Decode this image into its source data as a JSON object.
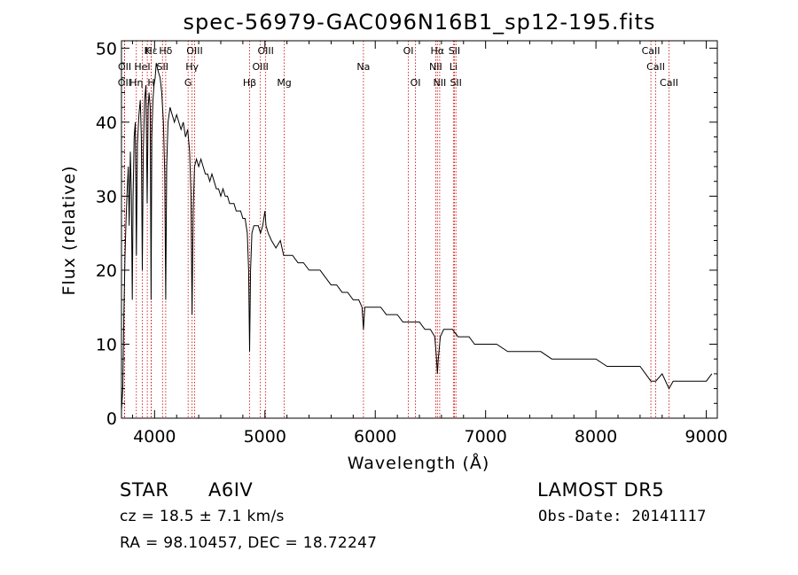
{
  "chart_data": {
    "type": "line",
    "title": "spec-56979-GAC096N16B1_sp12-195.fits",
    "xlabel": "Wavelength (Å)",
    "ylabel": "Flux (relative)",
    "xlim": [
      3700,
      9100
    ],
    "ylim": [
      0,
      51
    ],
    "xticks": [
      4000,
      5000,
      6000,
      7000,
      8000,
      9000
    ],
    "yticks": [
      0,
      10,
      20,
      30,
      40,
      50
    ],
    "xtick_labels": [
      "4000",
      "5000",
      "6000",
      "7000",
      "8000",
      "9000"
    ],
    "ytick_labels": [
      "0",
      "10",
      "20",
      "30",
      "40",
      "50"
    ],
    "grid": false,
    "line_color": "#000000",
    "marker_color": "#cc0000",
    "series": [
      {
        "points": [
          [
            3700,
            1
          ],
          [
            3712,
            4
          ],
          [
            3722,
            14
          ],
          [
            3732,
            22
          ],
          [
            3742,
            27
          ],
          [
            3752,
            31
          ],
          [
            3762,
            34
          ],
          [
            3770,
            26
          ],
          [
            3780,
            36
          ],
          [
            3790,
            30
          ],
          [
            3798,
            16
          ],
          [
            3805,
            30
          ],
          [
            3815,
            38
          ],
          [
            3825,
            40
          ],
          [
            3835,
            22
          ],
          [
            3845,
            37
          ],
          [
            3858,
            41
          ],
          [
            3870,
            43
          ],
          [
            3880,
            38
          ],
          [
            3889,
            20
          ],
          [
            3898,
            36
          ],
          [
            3910,
            43
          ],
          [
            3922,
            45
          ],
          [
            3933,
            29
          ],
          [
            3942,
            42
          ],
          [
            3950,
            44
          ],
          [
            3960,
            42
          ],
          [
            3968,
            16
          ],
          [
            3975,
            38
          ],
          [
            3985,
            43
          ],
          [
            3995,
            45
          ],
          [
            4005,
            46
          ],
          [
            4015,
            48
          ],
          [
            4030,
            47
          ],
          [
            4050,
            46
          ],
          [
            4065,
            44
          ],
          [
            4080,
            40
          ],
          [
            4092,
            33
          ],
          [
            4101,
            16
          ],
          [
            4110,
            34
          ],
          [
            4122,
            40
          ],
          [
            4140,
            42
          ],
          [
            4160,
            41
          ],
          [
            4180,
            40
          ],
          [
            4200,
            41
          ],
          [
            4220,
            40
          ],
          [
            4240,
            39
          ],
          [
            4260,
            40
          ],
          [
            4280,
            38
          ],
          [
            4300,
            39
          ],
          [
            4318,
            36
          ],
          [
            4330,
            30
          ],
          [
            4340,
            14
          ],
          [
            4350,
            28
          ],
          [
            4362,
            34
          ],
          [
            4380,
            35
          ],
          [
            4400,
            34
          ],
          [
            4420,
            35
          ],
          [
            4440,
            34
          ],
          [
            4460,
            33
          ],
          [
            4480,
            33
          ],
          [
            4500,
            32
          ],
          [
            4520,
            33
          ],
          [
            4540,
            32
          ],
          [
            4560,
            31
          ],
          [
            4580,
            31
          ],
          [
            4600,
            30
          ],
          [
            4620,
            31
          ],
          [
            4640,
            30
          ],
          [
            4660,
            30
          ],
          [
            4680,
            29
          ],
          [
            4700,
            29
          ],
          [
            4720,
            29
          ],
          [
            4740,
            28
          ],
          [
            4760,
            28
          ],
          [
            4780,
            28
          ],
          [
            4800,
            27
          ],
          [
            4820,
            27
          ],
          [
            4840,
            25
          ],
          [
            4852,
            20
          ],
          [
            4861,
            9
          ],
          [
            4870,
            20
          ],
          [
            4882,
            25
          ],
          [
            4900,
            26
          ],
          [
            4920,
            26
          ],
          [
            4940,
            26
          ],
          [
            4960,
            25
          ],
          [
            4980,
            26
          ],
          [
            5000,
            28
          ],
          [
            5010,
            26
          ],
          [
            5030,
            25
          ],
          [
            5060,
            24
          ],
          [
            5100,
            23
          ],
          [
            5140,
            24
          ],
          [
            5170,
            22
          ],
          [
            5200,
            22
          ],
          [
            5250,
            22
          ],
          [
            5300,
            21
          ],
          [
            5350,
            21
          ],
          [
            5400,
            20
          ],
          [
            5450,
            20
          ],
          [
            5500,
            20
          ],
          [
            5550,
            19
          ],
          [
            5600,
            18
          ],
          [
            5650,
            18
          ],
          [
            5700,
            17
          ],
          [
            5750,
            17
          ],
          [
            5800,
            16
          ],
          [
            5850,
            16
          ],
          [
            5880,
            15
          ],
          [
            5893,
            12
          ],
          [
            5905,
            15
          ],
          [
            5950,
            15
          ],
          [
            6000,
            15
          ],
          [
            6050,
            15
          ],
          [
            6100,
            14
          ],
          [
            6150,
            14
          ],
          [
            6200,
            14
          ],
          [
            6250,
            13
          ],
          [
            6300,
            13
          ],
          [
            6350,
            13
          ],
          [
            6400,
            13
          ],
          [
            6450,
            12
          ],
          [
            6500,
            12
          ],
          [
            6540,
            11
          ],
          [
            6555,
            8
          ],
          [
            6563,
            6
          ],
          [
            6571,
            8
          ],
          [
            6590,
            11
          ],
          [
            6620,
            12
          ],
          [
            6660,
            12
          ],
          [
            6700,
            12
          ],
          [
            6750,
            11
          ],
          [
            6800,
            11
          ],
          [
            6850,
            11
          ],
          [
            6900,
            10
          ],
          [
            6950,
            10
          ],
          [
            7000,
            10
          ],
          [
            7100,
            10
          ],
          [
            7200,
            9
          ],
          [
            7300,
            9
          ],
          [
            7400,
            9
          ],
          [
            7500,
            9
          ],
          [
            7600,
            8
          ],
          [
            7700,
            8
          ],
          [
            7800,
            8
          ],
          [
            7900,
            8
          ],
          [
            8000,
            8
          ],
          [
            8100,
            7
          ],
          [
            8200,
            7
          ],
          [
            8300,
            7
          ],
          [
            8400,
            7
          ],
          [
            8450,
            6
          ],
          [
            8498,
            5
          ],
          [
            8542,
            5
          ],
          [
            8600,
            6
          ],
          [
            8662,
            4
          ],
          [
            8700,
            5
          ],
          [
            8800,
            5
          ],
          [
            8900,
            5
          ],
          [
            9000,
            5
          ],
          [
            9050,
            6
          ]
        ]
      }
    ],
    "lines": [
      {
        "name": "Hδ",
        "wavelength": 4101,
        "row": 0
      },
      {
        "name": "OIII",
        "wavelength": 4363,
        "row": 0
      },
      {
        "name": "OIII",
        "wavelength": 5007,
        "row": 0
      },
      {
        "name": "Na",
        "wavelength": 5893,
        "row": 1
      },
      {
        "name": "OI",
        "wavelength": 6300,
        "row": 0
      },
      {
        "name": "OI",
        "wavelength": 6364,
        "row": 2
      },
      {
        "name": "Hα",
        "wavelength": 6563,
        "row": 0
      },
      {
        "name": "SII",
        "wavelength": 6717,
        "row": 0
      },
      {
        "name": "NII",
        "wavelength": 6548,
        "row": 1
      },
      {
        "name": "Li",
        "wavelength": 6708,
        "row": 1
      },
      {
        "name": "NII",
        "wavelength": 6584,
        "row": 2
      },
      {
        "name": "SII",
        "wavelength": 6731,
        "row": 2
      },
      {
        "name": "Hγ",
        "wavelength": 4340,
        "row": 1
      },
      {
        "name": "G",
        "wavelength": 4304,
        "row": 2
      },
      {
        "name": "OIII",
        "wavelength": 4959,
        "row": 1
      },
      {
        "name": "Hβ",
        "wavelength": 4861,
        "row": 2
      },
      {
        "name": "Mg",
        "wavelength": 5175,
        "row": 2
      },
      {
        "name": "CaII",
        "wavelength": 8498,
        "row": 0
      },
      {
        "name": "CaII",
        "wavelength": 8542,
        "row": 1
      },
      {
        "name": "CaII",
        "wavelength": 8662,
        "row": 2
      },
      {
        "name": "Hε",
        "wavelength": 3970,
        "row": 0
      },
      {
        "name": "K",
        "wavelength": 3934,
        "row": 0
      },
      {
        "name": "HeI",
        "wavelength": 3889,
        "row": 1
      },
      {
        "name": "SII",
        "wavelength": 4072,
        "row": 1
      },
      {
        "name": "H",
        "wavelength": 3969,
        "row": 2
      },
      {
        "name": "OII",
        "wavelength": 3727,
        "row": 2
      },
      {
        "name": "OII",
        "wavelength": 3729,
        "row": 1
      },
      {
        "name": "Hη",
        "wavelength": 3835,
        "row": 2
      }
    ]
  },
  "info": {
    "class_label": "STAR",
    "subclass": "A6IV",
    "survey": "LAMOST DR5",
    "cz": "cz = 18.5 ± 7.1 km/s",
    "obs_date": "Obs-Date: 20141117",
    "radec": "RA =  98.10457, DEC =  18.72247"
  }
}
